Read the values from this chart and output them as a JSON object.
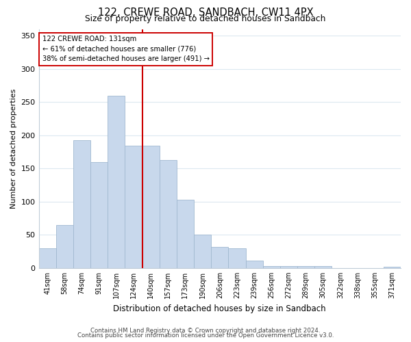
{
  "title": "122, CREWE ROAD, SANDBACH, CW11 4PX",
  "subtitle": "Size of property relative to detached houses in Sandbach",
  "xlabel": "Distribution of detached houses by size in Sandbach",
  "ylabel": "Number of detached properties",
  "bar_labels": [
    "41sqm",
    "58sqm",
    "74sqm",
    "91sqm",
    "107sqm",
    "124sqm",
    "140sqm",
    "157sqm",
    "173sqm",
    "190sqm",
    "206sqm",
    "223sqm",
    "239sqm",
    "256sqm",
    "272sqm",
    "289sqm",
    "305sqm",
    "322sqm",
    "338sqm",
    "355sqm",
    "371sqm"
  ],
  "bar_values": [
    30,
    65,
    193,
    160,
    260,
    184,
    184,
    163,
    103,
    50,
    32,
    30,
    11,
    3,
    3,
    3,
    3,
    0,
    0,
    0,
    2
  ],
  "bar_color": "#c8d8ec",
  "bar_edge_color": "#a0b8d0",
  "highlight_line_color": "#cc0000",
  "annotation_title": "122 CREWE ROAD: 131sqm",
  "annotation_line1": "← 61% of detached houses are smaller (776)",
  "annotation_line2": "38% of semi-detached houses are larger (491) →",
  "annotation_box_color": "#ffffff",
  "annotation_box_edge_color": "#cc0000",
  "ylim": [
    0,
    360
  ],
  "yticks": [
    0,
    50,
    100,
    150,
    200,
    250,
    300,
    350
  ],
  "footer_line1": "Contains HM Land Registry data © Crown copyright and database right 2024.",
  "footer_line2": "Contains public sector information licensed under the Open Government Licence v3.0.",
  "background_color": "#ffffff",
  "grid_color": "#dce8f0"
}
